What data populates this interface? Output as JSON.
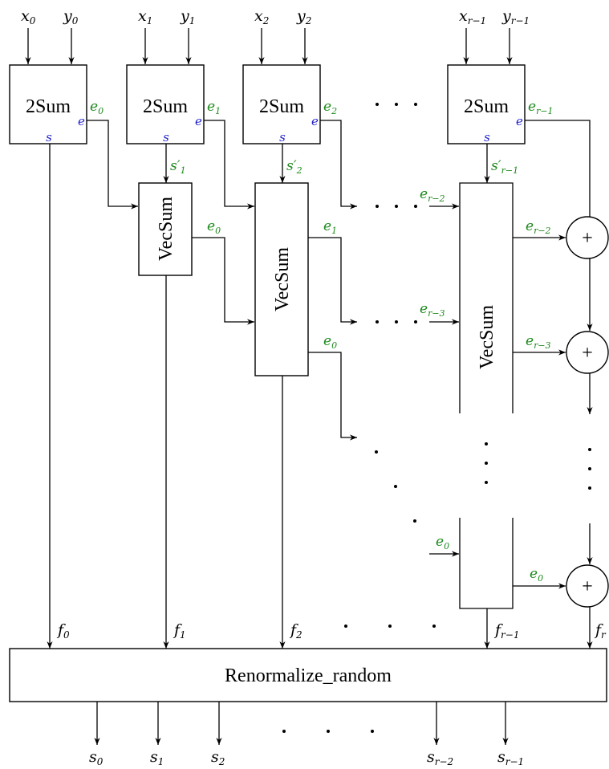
{
  "sum_blocks": [
    {
      "label": "2Sum",
      "in_x": "x",
      "in_x_sub": "0",
      "in_y": "y",
      "in_y_sub": "0",
      "s_out": "s",
      "e_out": "e",
      "err_label": "e",
      "err_sub": "0"
    },
    {
      "label": "2Sum",
      "in_x": "x",
      "in_x_sub": "1",
      "in_y": "y",
      "in_y_sub": "1",
      "s_out": "s",
      "e_out": "e",
      "err_label": "e",
      "err_sub": "1"
    },
    {
      "label": "2Sum",
      "in_x": "x",
      "in_x_sub": "2",
      "in_y": "y",
      "in_y_sub": "2",
      "s_out": "s",
      "e_out": "e",
      "err_label": "e",
      "err_sub": "2"
    },
    {
      "label": "2Sum",
      "in_x": "x",
      "in_x_sub": "r−1",
      "in_y": "y",
      "in_y_sub": "r−1",
      "s_out": "s",
      "e_out": "e",
      "err_label": "e",
      "err_sub": "r−1"
    }
  ],
  "s_prime": [
    {
      "label": "s′",
      "sub": "1"
    },
    {
      "label": "s′",
      "sub": "2"
    },
    {
      "label": "s′",
      "sub": "r−1"
    }
  ],
  "vecsum_label": "VecSum",
  "vecsum1_out": {
    "label": "e",
    "sub": "0"
  },
  "vecsum2_outs": [
    {
      "label": "e",
      "sub": "1"
    },
    {
      "label": "e",
      "sub": "0"
    }
  ],
  "vecsum3_ins": [
    {
      "label": "e",
      "sub": "r−2"
    },
    {
      "label": "e",
      "sub": "r−3"
    },
    {
      "label": "e",
      "sub": "0"
    }
  ],
  "vecsum3_outs": [
    {
      "label": "e",
      "sub": "r−2"
    },
    {
      "label": "e",
      "sub": "r−3"
    },
    {
      "label": "e",
      "sub": "0"
    }
  ],
  "adder_symbol": "+",
  "f_outputs": [
    {
      "label": "f",
      "sub": "0"
    },
    {
      "label": "f",
      "sub": "1"
    },
    {
      "label": "f",
      "sub": "2"
    },
    {
      "label": "f",
      "sub": "r−1"
    },
    {
      "label": "f",
      "sub": "r"
    }
  ],
  "renormalize_label": "Renormalize_random",
  "s_outputs": [
    {
      "label": "s",
      "sub": "0"
    },
    {
      "label": "s",
      "sub": "1"
    },
    {
      "label": "s",
      "sub": "2"
    },
    {
      "label": "s",
      "sub": "r−2"
    },
    {
      "label": "s",
      "sub": "r−1"
    }
  ]
}
